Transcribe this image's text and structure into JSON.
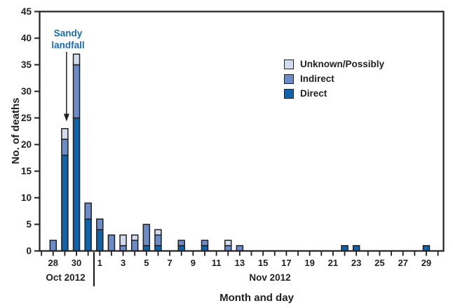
{
  "chart_data": {
    "type": "stacked-bar",
    "title": "",
    "xlabel": "Month and day",
    "ylabel": "No. of deaths",
    "ylim": [
      0,
      45
    ],
    "yticks": [
      0,
      5,
      10,
      15,
      20,
      25,
      30,
      35,
      40,
      45
    ],
    "series_order": [
      "direct",
      "indirect",
      "unknown"
    ],
    "legend": [
      {
        "key": "unknown",
        "label": "Unknown/Possibly",
        "color": "#d2dcee"
      },
      {
        "key": "indirect",
        "label": "Indirect",
        "color": "#6b8cc7"
      },
      {
        "key": "direct",
        "label": "Direct",
        "color": "#1062a9"
      }
    ],
    "legend_position": "upper-right-inside",
    "grid": false,
    "months": [
      {
        "label": "Oct 2012",
        "tick_days": [
          27,
          28,
          29,
          30,
          31
        ],
        "labeled_days": [
          28,
          30
        ]
      },
      {
        "label": "Nov 2012",
        "tick_days": [
          1,
          2,
          3,
          4,
          5,
          6,
          7,
          8,
          9,
          10,
          11,
          12,
          13,
          14,
          15,
          16,
          17,
          18,
          19,
          20,
          21,
          22,
          23,
          24,
          25,
          26,
          27,
          28,
          29,
          30
        ],
        "labeled_days": [
          1,
          3,
          5,
          7,
          9,
          11,
          13,
          15,
          17,
          19,
          21,
          23,
          25,
          27,
          29
        ]
      }
    ],
    "bars": [
      {
        "month": "Oct",
        "day": 28,
        "direct": 0,
        "indirect": 2,
        "unknown": 0
      },
      {
        "month": "Oct",
        "day": 29,
        "direct": 18,
        "indirect": 3,
        "unknown": 2
      },
      {
        "month": "Oct",
        "day": 30,
        "direct": 25,
        "indirect": 10,
        "unknown": 2
      },
      {
        "month": "Oct",
        "day": 31,
        "direct": 6,
        "indirect": 3,
        "unknown": 0
      },
      {
        "month": "Nov",
        "day": 1,
        "direct": 4,
        "indirect": 2,
        "unknown": 0
      },
      {
        "month": "Nov",
        "day": 2,
        "direct": 0,
        "indirect": 3,
        "unknown": 0
      },
      {
        "month": "Nov",
        "day": 3,
        "direct": 0,
        "indirect": 1,
        "unknown": 2
      },
      {
        "month": "Nov",
        "day": 4,
        "direct": 0,
        "indirect": 2,
        "unknown": 1
      },
      {
        "month": "Nov",
        "day": 5,
        "direct": 1,
        "indirect": 4,
        "unknown": 0
      },
      {
        "month": "Nov",
        "day": 6,
        "direct": 1,
        "indirect": 2,
        "unknown": 1
      },
      {
        "month": "Nov",
        "day": 8,
        "direct": 1,
        "indirect": 1,
        "unknown": 0
      },
      {
        "month": "Nov",
        "day": 10,
        "direct": 1,
        "indirect": 1,
        "unknown": 0
      },
      {
        "month": "Nov",
        "day": 12,
        "direct": 0,
        "indirect": 1,
        "unknown": 1
      },
      {
        "month": "Nov",
        "day": 13,
        "direct": 0,
        "indirect": 1,
        "unknown": 0
      },
      {
        "month": "Nov",
        "day": 22,
        "direct": 1,
        "indirect": 0,
        "unknown": 0
      },
      {
        "month": "Nov",
        "day": 23,
        "direct": 1,
        "indirect": 0,
        "unknown": 0
      },
      {
        "month": "Nov",
        "day": 29,
        "direct": 1,
        "indirect": 0,
        "unknown": 0
      }
    ],
    "annotation": {
      "text_lines": [
        "Sandy",
        "landfall"
      ],
      "points_to_month": "Oct",
      "points_to_day": 29,
      "color": "#1a6cb5"
    },
    "colors": {
      "axis": "#231f20",
      "bar_outline": "#221f20",
      "text": "#231f20"
    }
  }
}
